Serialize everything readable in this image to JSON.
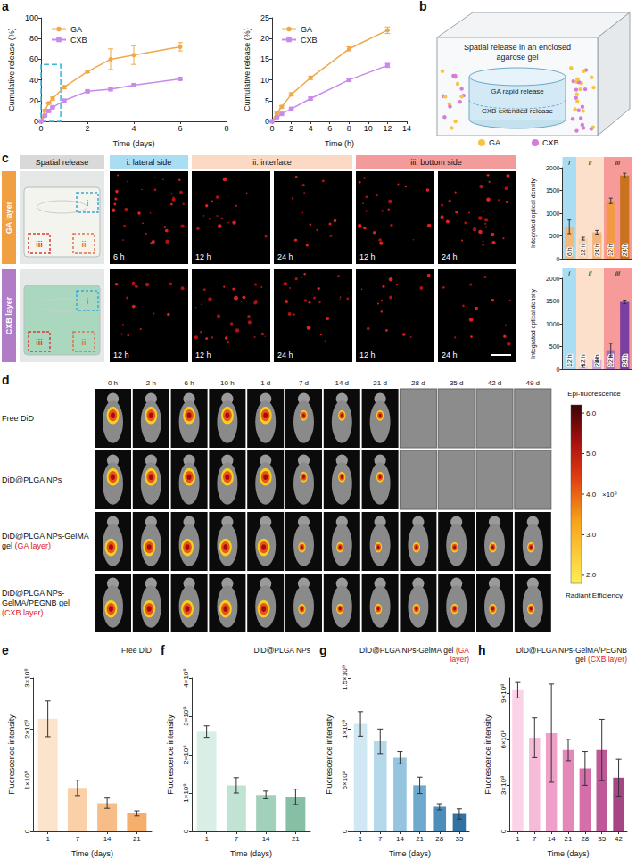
{
  "panel_letters": [
    "a",
    "b",
    "c",
    "d",
    "e",
    "f",
    "g",
    "h"
  ],
  "chart_data": [
    {
      "type": "line",
      "xlabel": "Time (days)",
      "ylabel": "Cumulative release (%)",
      "x": [
        0,
        0.167,
        0.333,
        0.5,
        1,
        2,
        3,
        4,
        6
      ],
      "series": [
        {
          "name": "GA",
          "color": "#EFA94A",
          "marker": "circle",
          "values": [
            0,
            10.5,
            17.5,
            22,
            33,
            48,
            60,
            64,
            72
          ],
          "errors": [
            0,
            1,
            1,
            1.5,
            1.5,
            1,
            10,
            9,
            4
          ]
        },
        {
          "name": "CXB",
          "color": "#C98BEA",
          "marker": "square",
          "values": [
            0,
            5.5,
            10,
            13.5,
            20,
            29,
            31,
            35,
            41
          ],
          "errors": [
            0,
            0.5,
            0.5,
            0.5,
            1,
            1,
            1,
            1,
            1
          ]
        }
      ],
      "xlim": [
        0,
        8
      ],
      "xticks": [
        0,
        2,
        4,
        6,
        8
      ],
      "ylim": [
        0,
        100
      ],
      "yticks": [
        0,
        20,
        40,
        60,
        80,
        100
      ],
      "grid": false,
      "legend": "upper left",
      "highlight_box": {
        "xlim": [
          0,
          0.85
        ],
        "ylim": [
          0,
          55
        ],
        "color": "#3BB4DC"
      }
    },
    {
      "type": "line",
      "xlabel": "Time (h)",
      "ylabel": "Cumulative release (%)",
      "x": [
        0,
        0.5,
        1,
        2,
        4,
        8,
        12
      ],
      "series": [
        {
          "name": "GA",
          "color": "#EFA94A",
          "marker": "circle",
          "values": [
            0,
            2,
            3.5,
            6.5,
            10.5,
            17.5,
            22
          ],
          "errors": [
            0,
            0.2,
            0.3,
            0.4,
            0.4,
            0.5,
            0.8
          ]
        },
        {
          "name": "CXB",
          "color": "#C98BEA",
          "marker": "square",
          "values": [
            0,
            1,
            1.8,
            3,
            5.5,
            10,
            13.5
          ],
          "errors": [
            0,
            0.1,
            0.2,
            0.2,
            0.3,
            0.3,
            0.5
          ]
        }
      ],
      "xlim": [
        0,
        14
      ],
      "xticks": [
        0,
        2,
        4,
        6,
        8,
        10,
        12,
        14
      ],
      "ylim": [
        0,
        25
      ],
      "yticks": [
        0,
        5,
        10,
        15,
        20,
        25
      ],
      "grid": false,
      "legend": "upper left"
    },
    {
      "type": "bar",
      "ylabel": "Integrated optical density",
      "categories": [
        "6 h",
        "12 h",
        "24 h",
        "12 h",
        "24 h"
      ],
      "values": [
        700,
        440,
        580,
        1270,
        1830
      ],
      "errors": [
        150,
        30,
        40,
        60,
        50
      ],
      "colors": [
        "#F4B978",
        "#F9D2B0",
        "#F3B47A",
        "#F29A45",
        "#C9731E"
      ],
      "groups": [
        {
          "label": "i",
          "span": 1,
          "color": "#A9DDF3"
        },
        {
          "label": "ii",
          "span": 2,
          "color": "#FCE0CC"
        },
        {
          "label": "iii",
          "span": 2,
          "color": "#F79A9A"
        }
      ],
      "ylim": [
        0,
        2000
      ],
      "yticks": [
        0,
        500,
        1000,
        1500,
        2000
      ],
      "grid": false
    },
    {
      "type": "bar",
      "ylabel": "Integrated optical density",
      "categories": [
        "12 h",
        "12 h",
        "24 h",
        "12 h",
        "24 h"
      ],
      "values": [
        5,
        70,
        200,
        420,
        1480
      ],
      "errors": [
        0,
        30,
        40,
        150,
        40
      ],
      "colors": [
        "#D9BCE8",
        "#E2CCEE",
        "#C9A3DF",
        "#A56CC7",
        "#7B3FA0"
      ],
      "groups": [
        {
          "label": "i",
          "span": 1,
          "color": "#A9DDF3"
        },
        {
          "label": "ii",
          "span": 2,
          "color": "#FCE0CC"
        },
        {
          "label": "iii",
          "span": 2,
          "color": "#F79A9A"
        }
      ],
      "ylim": [
        0,
        2000
      ],
      "yticks": [
        0,
        500,
        1000,
        1500,
        2000
      ],
      "grid": false
    },
    {
      "type": "bar",
      "title": "Free DiD",
      "xlabel": "Time (days)",
      "ylabel": "Fluorescence intensity",
      "categories": [
        "1",
        "7",
        "14",
        "21"
      ],
      "values": [
        2200000000,
        850000000,
        550000000,
        350000000
      ],
      "errors": [
        350000000,
        150000000,
        100000000,
        50000000
      ],
      "colors": [
        "#FCE3CC",
        "#FAD0A8",
        "#F7BD88",
        "#F5AE6C"
      ],
      "ylim": [
        0,
        3000000000
      ],
      "yticks": [
        0,
        {
          "value": 1000000000,
          "label": "1×10⁹"
        },
        {
          "value": 2000000000,
          "label": "2×10⁹"
        },
        {
          "value": 3000000000,
          "label": "3×10⁹"
        }
      ],
      "grid": false
    },
    {
      "type": "bar",
      "title": "DiD@PLGA NPs",
      "xlabel": "Time (days)",
      "ylabel": "Fluorescence intensity",
      "categories": [
        "1",
        "7",
        "14",
        "21"
      ],
      "values": [
        2600000000,
        1200000000,
        950000000,
        900000000
      ],
      "errors": [
        150000000,
        200000000,
        100000000,
        200000000
      ],
      "colors": [
        "#D9EFE6",
        "#C0E3D3",
        "#A2D1BA",
        "#86BFA3"
      ],
      "ylim": [
        0,
        4000000000
      ],
      "yticks": [
        0,
        {
          "value": 1000000000,
          "label": "1×10⁹"
        },
        {
          "value": 2000000000,
          "label": "2×10⁹"
        },
        {
          "value": 3000000000,
          "label": "3×10⁹"
        },
        {
          "value": 4000000000,
          "label": "4×10⁹"
        }
      ],
      "grid": false
    },
    {
      "type": "bar",
      "title": "DiD@PLGA NPs-GelMA gel (GA layer)",
      "xlabel": "Time (days)",
      "ylabel": "Fluorescence intensity",
      "categories": [
        "1",
        "7",
        "14",
        "21",
        "28",
        "35"
      ],
      "values": [
        1050000000,
        880000000,
        720000000,
        450000000,
        240000000,
        170000000
      ],
      "errors": [
        120000000,
        120000000,
        60000000,
        80000000,
        30000000,
        50000000
      ],
      "colors": [
        "#CFE8F3",
        "#B5D9EA",
        "#94C4DE",
        "#6FA9CE",
        "#4D8DBA",
        "#3272A3"
      ],
      "ylim": [
        0,
        1500000000
      ],
      "yticks": [
        0,
        {
          "value": 500000000,
          "label": "5×10⁸"
        },
        {
          "value": 1000000000,
          "label": "1×10⁹"
        },
        {
          "value": 1500000000,
          "label": "1.5×10⁹"
        }
      ],
      "grid": false
    },
    {
      "type": "bar",
      "title": "DiD@PLGA NPs-GelMA/PEGNB gel (CXB layer)",
      "xlabel": "Time (days)",
      "ylabel": "Fluorescence intensity",
      "categories": [
        "1",
        "7",
        "14",
        "21",
        "28",
        "35",
        "42"
      ],
      "values": [
        920000000,
        610000000,
        640000000,
        530000000,
        410000000,
        530000000,
        350000000
      ],
      "errors": [
        50000000,
        130000000,
        320000000,
        70000000,
        110000000,
        200000000,
        120000000
      ],
      "colors": [
        "#FBD3E6",
        "#F6BBD8",
        "#EFA0C8",
        "#E487B9",
        "#D46FA9",
        "#BF5896",
        "#A84584"
      ],
      "ylim": [
        0,
        1000000000
      ],
      "yticks": [
        0,
        {
          "value": 300000000,
          "label": "3×10⁸"
        },
        {
          "value": 600000000,
          "label": "6×10⁸"
        },
        {
          "value": 900000000,
          "label": "9×10⁸"
        }
      ],
      "grid": false
    }
  ],
  "panel_b": {
    "title": "Spatial release in an enclosed agarose gel",
    "labels": [
      "GA rapid release",
      "CXB extended release"
    ],
    "legend": [
      {
        "name": "GA",
        "color": "#F5C542"
      },
      {
        "name": "CXB",
        "color": "#D77BD8"
      }
    ]
  },
  "panel_c": {
    "headers": [
      {
        "label": "Spatial release",
        "color": "#D9D9D9"
      },
      {
        "label": "i: lateral side",
        "color": "#A9DDF3",
        "images": 1
      },
      {
        "label": "ii: interface",
        "color": "#FBD9C4",
        "images": 2
      },
      {
        "label": "iii: bottom side",
        "color": "#F39A9A",
        "images": 2
      }
    ],
    "regions": [
      {
        "label": "i",
        "color": "#3BA7D8"
      },
      {
        "label": "ii",
        "color": "#E0704A"
      },
      {
        "label": "iii",
        "color": "#D93A3A"
      }
    ],
    "rows": [
      {
        "label": "GA layer",
        "color": "#F0A040",
        "times": [
          "6 h",
          "12 h",
          "24 h",
          "12 h",
          "24 h"
        ]
      },
      {
        "label": "CXB layer",
        "color": "#B07CC6",
        "times": [
          "12 h",
          "12 h",
          "24 h",
          "12 h",
          "24 h"
        ]
      }
    ]
  },
  "panel_d": {
    "columns": [
      "0 h",
      "2 h",
      "6 h",
      "10 h",
      "1 d",
      "7 d",
      "14 d",
      "21 d",
      "28 d",
      "35 d",
      "42 d",
      "49 d"
    ],
    "rows": [
      {
        "label": "Free DiD",
        "last_image": "21 d"
      },
      {
        "label": "DiD@PLGA NPs",
        "last_image": "21 d"
      },
      {
        "label": "DiD@PLGA NPs-GelMA gel (GA layer)",
        "last_image": "49 d"
      },
      {
        "label": "DiD@PLGA NPs-GelMA/PEGNB gel (CXB layer)",
        "last_image": "49 d"
      }
    ],
    "colorbar": {
      "title": "Epi-fluorescence",
      "label": "Radiant Efficiency",
      "multiplier": "×10⁹",
      "range": [
        1.8,
        6.2
      ],
      "ticks": [
        {
          "value": 2,
          "label": "2.0"
        },
        {
          "value": 3,
          "label": "3.0"
        },
        {
          "value": 4,
          "label": "4.0"
        },
        {
          "value": 5,
          "label": "5.0"
        },
        {
          "value": 6,
          "label": "6.0"
        }
      ]
    }
  }
}
